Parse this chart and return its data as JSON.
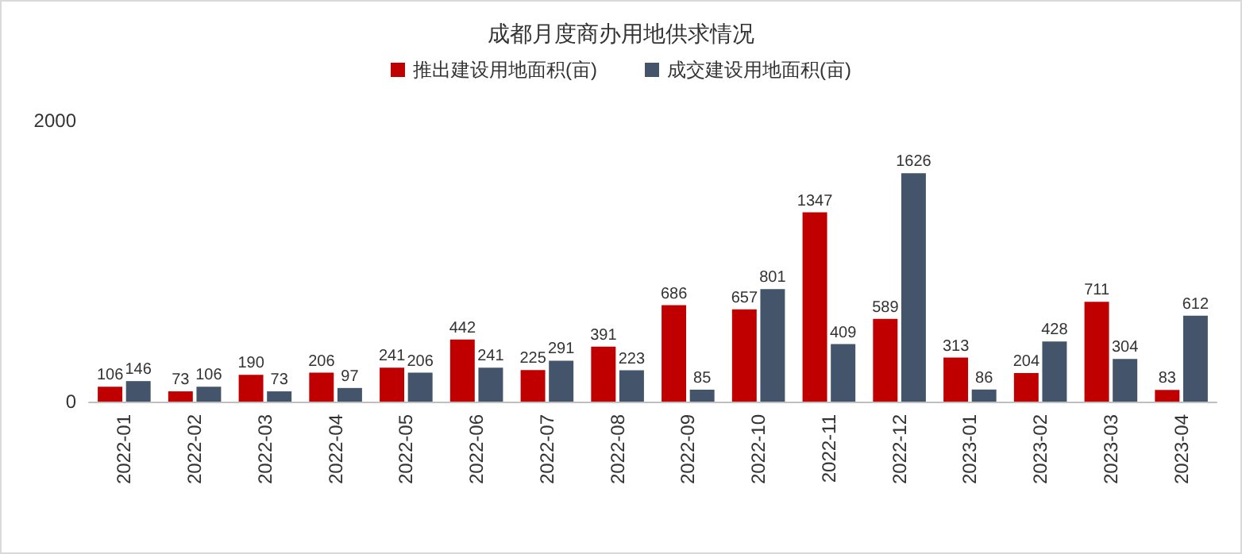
{
  "chart_data": {
    "type": "bar",
    "title": "成都月度商办用地供求情况",
    "categories": [
      "2022-01",
      "2022-02",
      "2022-03",
      "2022-04",
      "2022-05",
      "2022-06",
      "2022-07",
      "2022-08",
      "2022-09",
      "2022-10",
      "2022-11",
      "2022-12",
      "2023-01",
      "2023-02",
      "2023-03",
      "2023-04"
    ],
    "series": [
      {
        "name": "推出建设用地面积(亩)",
        "color": "#c00000",
        "values": [
          106,
          73,
          190,
          206,
          241,
          442,
          225,
          391,
          686,
          657,
          1347,
          589,
          313,
          204,
          711,
          83
        ]
      },
      {
        "name": "成交建设用地面积(亩)",
        "color": "#44546a",
        "values": [
          146,
          106,
          73,
          97,
          206,
          241,
          291,
          223,
          85,
          801,
          409,
          1626,
          86,
          428,
          304,
          612
        ]
      }
    ],
    "ylim": [
      0,
      2000
    ],
    "yticks": [
      0,
      2000
    ],
    "grid": false,
    "legend": "top",
    "data_labels": true
  }
}
